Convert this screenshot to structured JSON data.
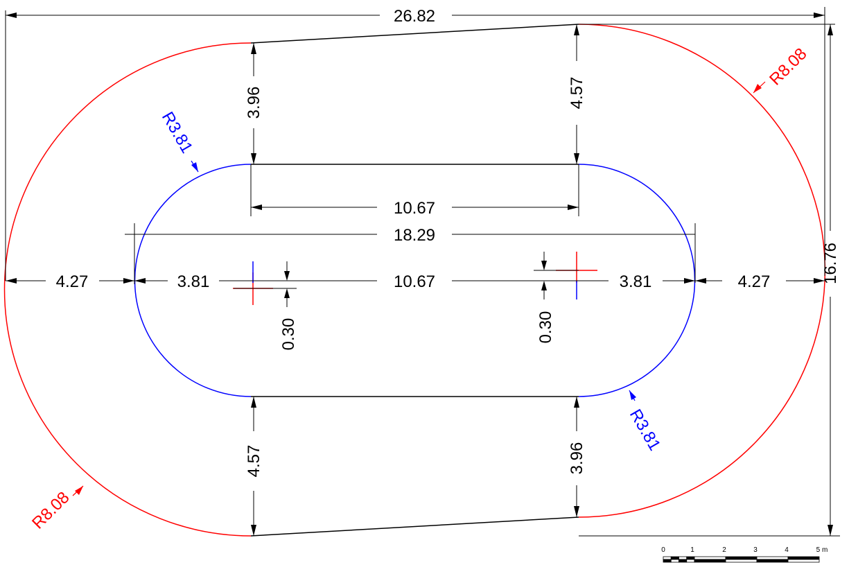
{
  "colors": {
    "outer_track": "#ff0000",
    "inner_track": "#0000ff",
    "lines": "#000000",
    "background": "#ffffff"
  },
  "dimensions": {
    "overall_width": "26.82",
    "overall_height": "16.76",
    "inner_length": "18.29",
    "straight_top": "10.67",
    "straight_center": "10.67",
    "left_offset": "4.27",
    "right_offset": "4.27",
    "left_inner_radius_dim": "3.81",
    "right_inner_radius_dim": "3.81",
    "top_left_gap": "3.96",
    "top_right_gap": "4.57",
    "bottom_left_gap": "4.57",
    "bottom_right_gap": "3.96",
    "left_center_offset": "0.30",
    "right_center_offset": "0.30"
  },
  "radii": {
    "outer_top_right": "R8.08",
    "outer_bottom_left": "R8.08",
    "inner_top_left": "R3.81",
    "inner_bottom_right": "R3.81"
  },
  "scale_bar": {
    "labels": [
      "0",
      "1",
      "2",
      "3",
      "4",
      "5 m"
    ]
  }
}
